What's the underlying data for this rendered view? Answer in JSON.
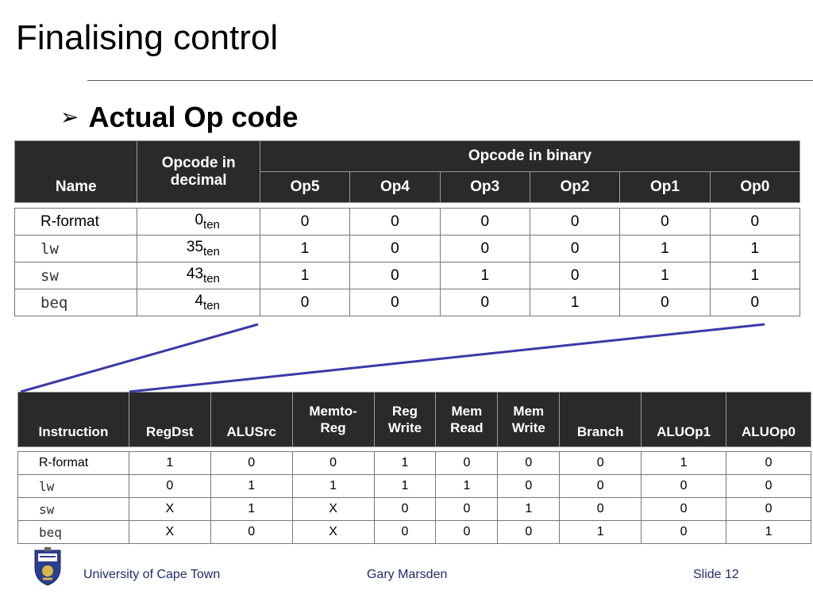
{
  "slide": {
    "title": "Finalising control",
    "bullet": "Actual Op code"
  },
  "opcode_table": {
    "headers": {
      "name": "Name",
      "decimal_line1": "Opcode in",
      "decimal_line2": "decimal",
      "binary": "Opcode in binary",
      "bits": [
        "Op5",
        "Op4",
        "Op3",
        "Op2",
        "Op1",
        "Op0"
      ]
    },
    "rows": [
      {
        "name": "R-format",
        "decimal": "0",
        "subscript": "ten",
        "bits": [
          "0",
          "0",
          "0",
          "0",
          "0",
          "0"
        ],
        "mono": false
      },
      {
        "name": "lw",
        "decimal": "35",
        "subscript": "ten",
        "bits": [
          "1",
          "0",
          "0",
          "0",
          "1",
          "1"
        ],
        "mono": true
      },
      {
        "name": "sw",
        "decimal": "43",
        "subscript": "ten",
        "bits": [
          "1",
          "0",
          "1",
          "0",
          "1",
          "1"
        ],
        "mono": true
      },
      {
        "name": "beq",
        "decimal": "4",
        "subscript": "ten",
        "bits": [
          "0",
          "0",
          "0",
          "1",
          "0",
          "0"
        ],
        "mono": true
      }
    ]
  },
  "control_table": {
    "headers": [
      {
        "line1": "Instruction",
        "line2": ""
      },
      {
        "line1": "RegDst",
        "line2": ""
      },
      {
        "line1": "ALUSrc",
        "line2": ""
      },
      {
        "line1": "Memto-",
        "line2": "Reg"
      },
      {
        "line1": "Reg",
        "line2": "Write"
      },
      {
        "line1": "Mem",
        "line2": "Read"
      },
      {
        "line1": "Mem",
        "line2": "Write"
      },
      {
        "line1": "Branch",
        "line2": ""
      },
      {
        "line1": "ALUOp1",
        "line2": ""
      },
      {
        "line1": "ALUOp0",
        "line2": ""
      }
    ],
    "rows": [
      {
        "name": "R-format",
        "mono": false,
        "values": [
          "1",
          "0",
          "0",
          "1",
          "0",
          "0",
          "0",
          "1",
          "0"
        ]
      },
      {
        "name": "lw",
        "mono": true,
        "values": [
          "0",
          "1",
          "1",
          "1",
          "1",
          "0",
          "0",
          "0",
          "0"
        ]
      },
      {
        "name": "sw",
        "mono": true,
        "values": [
          "X",
          "1",
          "X",
          "0",
          "0",
          "1",
          "0",
          "0",
          "0"
        ]
      },
      {
        "name": "beq",
        "mono": true,
        "values": [
          "X",
          "0",
          "X",
          "0",
          "0",
          "0",
          "1",
          "0",
          "1"
        ]
      }
    ]
  },
  "footer": {
    "institution": "University of Cape Town",
    "author": "Gary Marsden",
    "slide_number": "Slide 12"
  },
  "colors": {
    "header_bg": "#2a2a2a",
    "connector": "#3a3aa8",
    "footer_text": "#1f2d6b"
  }
}
